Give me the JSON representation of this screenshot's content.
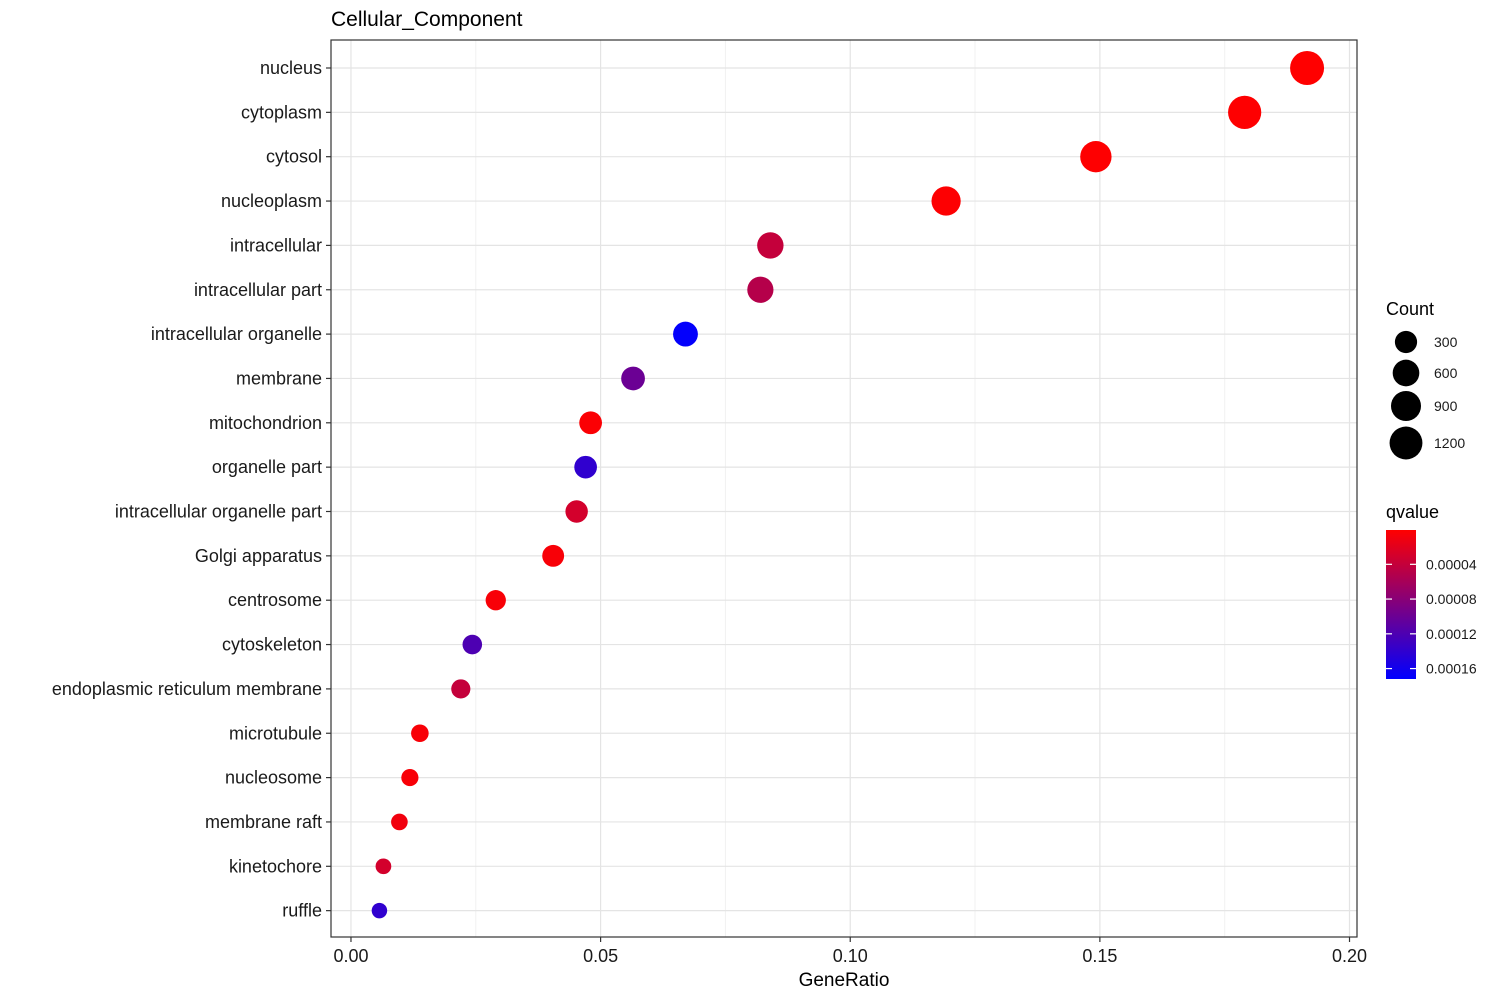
{
  "chart_data": {
    "type": "scatter",
    "title": "Cellular_Component",
    "xlabel": "GeneRatio",
    "ylabel": "",
    "xlim": [
      -0.004,
      0.2015
    ],
    "xticks": [
      0.0,
      0.05,
      0.1,
      0.15,
      0.2
    ],
    "xtick_labels": [
      "0.00",
      "0.05",
      "0.10",
      "0.15",
      "0.20"
    ],
    "grid": true,
    "legend_position": "right",
    "categories": [
      "nucleus",
      "cytoplasm",
      "cytosol",
      "nucleoplasm",
      "intracellular",
      "intracellular part",
      "intracellular organelle",
      "membrane",
      "mitochondrion",
      "organelle part",
      "intracellular organelle part",
      "Golgi apparatus",
      "centrosome",
      "cytoskeleton",
      "endoplasmic reticulum membrane",
      "microtubule",
      "nucleosome",
      "membrane raft",
      "kinetochore",
      "ruffle"
    ],
    "points": [
      {
        "term": "nucleus",
        "gene_ratio": 0.1915,
        "count": 1330,
        "qvalue": 5e-07
      },
      {
        "term": "cytoplasm",
        "gene_ratio": 0.179,
        "count": 1240,
        "qvalue": 1e-06
      },
      {
        "term": "cytosol",
        "gene_ratio": 0.1492,
        "count": 1035,
        "qvalue": 1e-06
      },
      {
        "term": "nucleoplasm",
        "gene_ratio": 0.1192,
        "count": 825,
        "qvalue": 2e-06
      },
      {
        "term": "intracellular",
        "gene_ratio": 0.084,
        "count": 580,
        "qvalue": 4e-05
      },
      {
        "term": "intracellular part",
        "gene_ratio": 0.082,
        "count": 565,
        "qvalue": 5e-05
      },
      {
        "term": "intracellular organelle",
        "gene_ratio": 0.067,
        "count": 465,
        "qvalue": 0.00017
      },
      {
        "term": "membrane",
        "gene_ratio": 0.0565,
        "count": 390,
        "qvalue": 0.0001
      },
      {
        "term": "mitochondrion",
        "gene_ratio": 0.048,
        "count": 330,
        "qvalue": 3e-06
      },
      {
        "term": "organelle part",
        "gene_ratio": 0.047,
        "count": 325,
        "qvalue": 0.00014
      },
      {
        "term": "intracellular organelle part",
        "gene_ratio": 0.0452,
        "count": 312,
        "qvalue": 3e-05
      },
      {
        "term": "Golgi apparatus",
        "gene_ratio": 0.0405,
        "count": 280,
        "qvalue": 5e-06
      },
      {
        "term": "centrosome",
        "gene_ratio": 0.029,
        "count": 200,
        "qvalue": 5e-06
      },
      {
        "term": "cytoskeleton",
        "gene_ratio": 0.0243,
        "count": 168,
        "qvalue": 0.00012
      },
      {
        "term": "endoplasmic reticulum membrane",
        "gene_ratio": 0.022,
        "count": 152,
        "qvalue": 4e-05
      },
      {
        "term": "microtubule",
        "gene_ratio": 0.0138,
        "count": 95,
        "qvalue": 5e-06
      },
      {
        "term": "nucleosome",
        "gene_ratio": 0.0118,
        "count": 82,
        "qvalue": 5e-06
      },
      {
        "term": "membrane raft",
        "gene_ratio": 0.0097,
        "count": 67,
        "qvalue": 1e-05
      },
      {
        "term": "kinetochore",
        "gene_ratio": 0.0065,
        "count": 45,
        "qvalue": 3e-05
      },
      {
        "term": "ruffle",
        "gene_ratio": 0.0057,
        "count": 40,
        "qvalue": 0.00014
      }
    ],
    "size_legend": {
      "title": "Count",
      "values": [
        300,
        600,
        900,
        1200
      ],
      "labels": [
        "300",
        "600",
        "900",
        "1200"
      ]
    },
    "color_legend": {
      "title": "qvalue",
      "range": [
        5e-07,
        0.000172
      ],
      "low_color": "#FF0000",
      "high_color": "#0000FF",
      "ticks": [
        4e-05,
        8e-05,
        0.00012,
        0.00016
      ],
      "tick_labels": [
        "0.00004",
        "0.00008",
        "0.00012",
        "0.00016"
      ]
    }
  }
}
